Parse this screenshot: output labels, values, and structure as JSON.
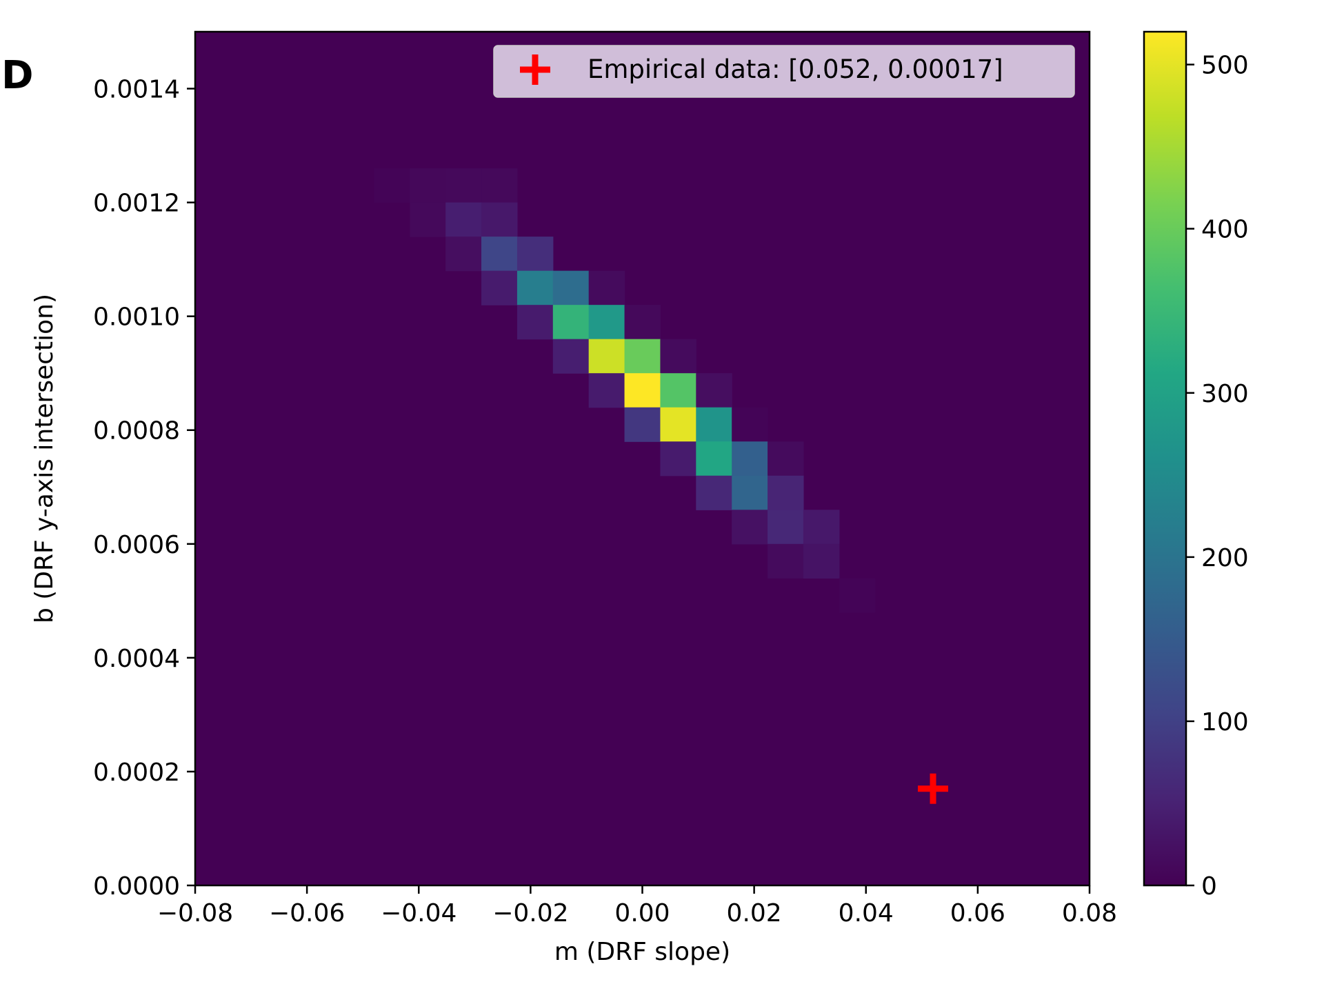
{
  "panel_label": "D",
  "chart_data": {
    "type": "heatmap",
    "xlabel": "m (DRF slope)",
    "ylabel": "b (DRF y-axis intersection)",
    "xlim": [
      -0.08,
      0.08
    ],
    "ylim": [
      0.0,
      0.0015
    ],
    "x_ticks": [
      -0.08,
      -0.06,
      -0.04,
      -0.02,
      0.0,
      0.02,
      0.04,
      0.06,
      0.08
    ],
    "x_tick_labels": [
      "−0.08",
      "−0.06",
      "−0.04",
      "−0.02",
      "0.00",
      "0.02",
      "0.04",
      "0.06",
      "0.08"
    ],
    "y_ticks": [
      0.0,
      0.0002,
      0.0004,
      0.0006,
      0.0008,
      0.001,
      0.0012,
      0.0014
    ],
    "y_tick_labels": [
      "0.0000",
      "0.0002",
      "0.0004",
      "0.0006",
      "0.0008",
      "0.0010",
      "0.0012",
      "0.0014"
    ],
    "colormap": "viridis",
    "colorbar": {
      "min": 0,
      "max": 520,
      "ticks": [
        0,
        100,
        200,
        300,
        400,
        500
      ],
      "tick_labels": [
        "0",
        "100",
        "200",
        "300",
        "400",
        "500"
      ]
    },
    "bins": {
      "x_edges": [
        -0.08,
        -0.0736,
        -0.0672,
        -0.0608,
        -0.0544,
        -0.048,
        -0.0416,
        -0.0352,
        -0.0288,
        -0.0224,
        -0.016,
        -0.0096,
        -0.0032,
        0.0032,
        0.0096,
        0.016,
        0.0224,
        0.0288,
        0.0352,
        0.0416,
        0.048,
        0.0544,
        0.0608,
        0.0672,
        0.0736,
        0.08
      ],
      "y_edges": [
        0.0,
        6e-05,
        0.00012,
        0.00018,
        0.00024,
        0.0003,
        0.00036,
        0.00042,
        0.00048,
        0.00054,
        0.0006,
        0.00066,
        0.00072,
        0.00078,
        0.00084,
        0.0009,
        0.00096,
        0.00102,
        0.00108,
        0.00114,
        0.0012,
        0.00126,
        0.00132,
        0.00138,
        0.00144,
        0.0015
      ]
    },
    "cells": [
      {
        "x": -0.0448,
        "y": 0.00123,
        "value": 5
      },
      {
        "x": -0.0384,
        "y": 0.00123,
        "value": 10
      },
      {
        "x": -0.032,
        "y": 0.00123,
        "value": 12
      },
      {
        "x": -0.0256,
        "y": 0.00123,
        "value": 12
      },
      {
        "x": -0.0384,
        "y": 0.00117,
        "value": 12
      },
      {
        "x": -0.032,
        "y": 0.00117,
        "value": 45
      },
      {
        "x": -0.0256,
        "y": 0.00117,
        "value": 35
      },
      {
        "x": -0.032,
        "y": 0.00111,
        "value": 20
      },
      {
        "x": -0.0256,
        "y": 0.00111,
        "value": 110
      },
      {
        "x": -0.0192,
        "y": 0.00111,
        "value": 70
      },
      {
        "x": -0.0256,
        "y": 0.00105,
        "value": 40
      },
      {
        "x": -0.0192,
        "y": 0.00105,
        "value": 220
      },
      {
        "x": -0.0128,
        "y": 0.00105,
        "value": 185
      },
      {
        "x": -0.0064,
        "y": 0.00105,
        "value": 15
      },
      {
        "x": -0.0192,
        "y": 0.00099,
        "value": 40
      },
      {
        "x": -0.0128,
        "y": 0.00099,
        "value": 340
      },
      {
        "x": -0.0064,
        "y": 0.00099,
        "value": 280
      },
      {
        "x": 0.0,
        "y": 0.00099,
        "value": 12
      },
      {
        "x": -0.0128,
        "y": 0.00093,
        "value": 45
      },
      {
        "x": -0.0064,
        "y": 0.00093,
        "value": 480
      },
      {
        "x": 0.0,
        "y": 0.00093,
        "value": 400
      },
      {
        "x": 0.0064,
        "y": 0.00093,
        "value": 15
      },
      {
        "x": -0.0064,
        "y": 0.00087,
        "value": 40
      },
      {
        "x": 0.0,
        "y": 0.00087,
        "value": 520
      },
      {
        "x": 0.0064,
        "y": 0.00087,
        "value": 380
      },
      {
        "x": 0.0128,
        "y": 0.00087,
        "value": 20
      },
      {
        "x": 0.0,
        "y": 0.00081,
        "value": 85
      },
      {
        "x": 0.0064,
        "y": 0.00081,
        "value": 500
      },
      {
        "x": 0.0128,
        "y": 0.00081,
        "value": 270
      },
      {
        "x": 0.0192,
        "y": 0.00081,
        "value": 5
      },
      {
        "x": 0.0064,
        "y": 0.00075,
        "value": 40
      },
      {
        "x": 0.0128,
        "y": 0.00075,
        "value": 310
      },
      {
        "x": 0.0192,
        "y": 0.00075,
        "value": 160
      },
      {
        "x": 0.0256,
        "y": 0.00075,
        "value": 15
      },
      {
        "x": 0.0128,
        "y": 0.00069,
        "value": 60
      },
      {
        "x": 0.0192,
        "y": 0.00069,
        "value": 170
      },
      {
        "x": 0.0256,
        "y": 0.00069,
        "value": 55
      },
      {
        "x": 0.0192,
        "y": 0.00063,
        "value": 25
      },
      {
        "x": 0.0256,
        "y": 0.00063,
        "value": 60
      },
      {
        "x": 0.032,
        "y": 0.00063,
        "value": 35
      },
      {
        "x": 0.0256,
        "y": 0.00057,
        "value": 15
      },
      {
        "x": 0.032,
        "y": 0.00057,
        "value": 28
      },
      {
        "x": 0.0384,
        "y": 0.00051,
        "value": 5
      }
    ],
    "series": [
      {
        "name": "Empirical data: [0.052, 0.00017]",
        "type": "scatter",
        "marker": "plus",
        "color": "#ff0000",
        "x": [
          0.052
        ],
        "y": [
          0.00017
        ]
      }
    ],
    "legend": {
      "location": "upper right",
      "entries": [
        "Empirical data: [0.052, 0.00017]"
      ]
    },
    "grid": false
  },
  "colors": {
    "marker": "#ff0000",
    "legend_background": "#d8c8e0"
  }
}
